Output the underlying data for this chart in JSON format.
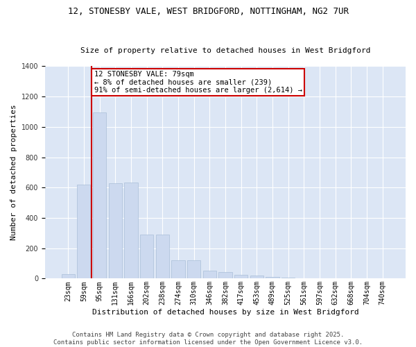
{
  "title_line1": "12, STONESBY VALE, WEST BRIDGFORD, NOTTINGHAM, NG2 7UR",
  "title_line2": "Size of property relative to detached houses in West Bridgford",
  "xlabel": "Distribution of detached houses by size in West Bridgford",
  "ylabel": "Number of detached properties",
  "bar_color": "#ccd9ef",
  "bar_edge_color": "#aabfd8",
  "background_color": "#dce6f5",
  "grid_color": "#ffffff",
  "fig_background": "#ffffff",
  "categories": [
    "23sqm",
    "59sqm",
    "95sqm",
    "131sqm",
    "166sqm",
    "202sqm",
    "238sqm",
    "274sqm",
    "310sqm",
    "346sqm",
    "382sqm",
    "417sqm",
    "453sqm",
    "489sqm",
    "525sqm",
    "561sqm",
    "597sqm",
    "632sqm",
    "668sqm",
    "704sqm",
    "740sqm"
  ],
  "values": [
    30,
    620,
    1095,
    630,
    635,
    290,
    290,
    120,
    120,
    50,
    45,
    25,
    20,
    10,
    5,
    3,
    2,
    1,
    1,
    0,
    0
  ],
  "ylim": [
    0,
    1400
  ],
  "yticks": [
    0,
    200,
    400,
    600,
    800,
    1000,
    1200,
    1400
  ],
  "annotation_line1": "12 STONESBY VALE: 79sqm",
  "annotation_line2": "← 8% of detached houses are smaller (239)",
  "annotation_line3": "91% of semi-detached houses are larger (2,614) →",
  "vline_x": 1.5,
  "footer_line1": "Contains HM Land Registry data © Crown copyright and database right 2025.",
  "footer_line2": "Contains public sector information licensed under the Open Government Licence v3.0.",
  "annotation_box_color": "#ffffff",
  "annotation_box_edge": "#cc0000",
  "vline_color": "#cc0000",
  "title_fontsize": 9,
  "subtitle_fontsize": 8,
  "ylabel_fontsize": 8,
  "xlabel_fontsize": 8,
  "tick_fontsize": 7,
  "annotation_fontsize": 7.5,
  "footer_fontsize": 6.5
}
